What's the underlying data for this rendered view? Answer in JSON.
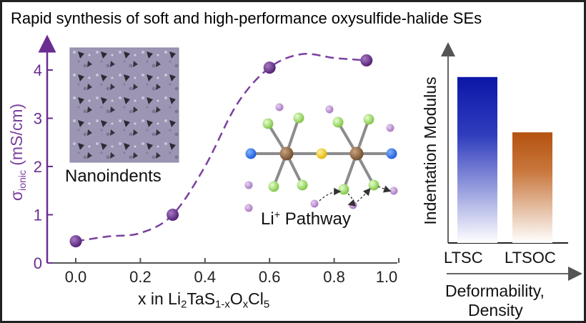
{
  "title": "Rapid synthesis of soft and high-performance oxysulfide-halide SEs",
  "colors": {
    "purple": "#6b2c91",
    "line": "#7b3f9e",
    "bar1": "#0c16a8",
    "bar2": "#b5520f"
  },
  "chart_data": [
    {
      "type": "line",
      "title": "",
      "xlabel_parts": [
        "x in Li",
        "2",
        "TaS",
        "1-x",
        "O",
        "x",
        "Cl",
        "5"
      ],
      "ylabel": {
        "sigma": "σ",
        "sub": "ionic",
        "unit": " (mS/cm)"
      },
      "xlim": [
        -0.1,
        1.0
      ],
      "ylim": [
        0,
        4.5
      ],
      "xticks": [
        "0.0",
        "0.2",
        "0.4",
        "0.6",
        "0.8",
        "1.0"
      ],
      "xtick_values": [
        0.0,
        0.2,
        0.4,
        0.6,
        0.8,
        1.0
      ],
      "yticks": [
        "0",
        "1",
        "2",
        "3",
        "4"
      ],
      "ytick_values": [
        0,
        1,
        2,
        3,
        4
      ],
      "points": [
        {
          "x": 0.0,
          "y": 0.45
        },
        {
          "x": 0.3,
          "y": 1.0
        },
        {
          "x": 0.6,
          "y": 4.05
        },
        {
          "x": 0.9,
          "y": 4.2
        }
      ],
      "trend": [
        {
          "x": 0.0,
          "y": 0.45
        },
        {
          "x": 0.1,
          "y": 0.55
        },
        {
          "x": 0.2,
          "y": 0.62
        },
        {
          "x": 0.3,
          "y": 1.0
        },
        {
          "x": 0.4,
          "y": 2.0
        },
        {
          "x": 0.5,
          "y": 3.3
        },
        {
          "x": 0.6,
          "y": 4.05
        },
        {
          "x": 0.7,
          "y": 4.33
        },
        {
          "x": 0.8,
          "y": 4.25
        },
        {
          "x": 0.9,
          "y": 4.2
        }
      ]
    },
    {
      "type": "bar",
      "categories": [
        "LTSC",
        "LTSOC"
      ],
      "values": [
        0.9,
        0.6
      ],
      "ylabel": "Indentation Modulus",
      "xlabel_lines": [
        "Deformability,",
        "Density"
      ],
      "ylim": [
        0,
        1.0
      ]
    }
  ],
  "insets": {
    "nanoindents_label": "Nanoindents",
    "pathway_label": {
      "base": "Li",
      "sup": "+",
      "rest": " Pathway"
    }
  }
}
